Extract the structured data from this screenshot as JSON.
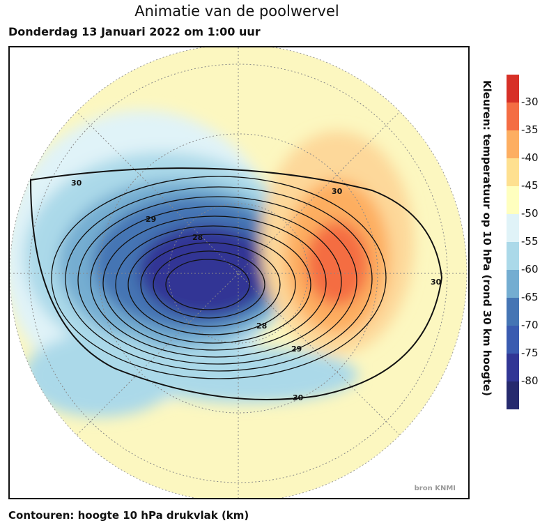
{
  "title": "Animatie van de poolwervel",
  "subtitle": "Donderdag 13 Januari 2022 om 1:00 uur",
  "footer": "Contouren: hoogte 10 hPa drukvlak (km)",
  "source": "bron KNMI",
  "colorbar": {
    "title": "Kleuren: temperatuur op 10 hPa (rond 30 km hoogte)",
    "colors": [
      "#d73027",
      "#f46d43",
      "#fdae61",
      "#fee090",
      "#ffffbf",
      "#e0f3f8",
      "#abd9e9",
      "#74add1",
      "#4575b4",
      "#3a5bb0",
      "#313695",
      "#262a6e"
    ],
    "ticks": [
      "-30",
      "-35",
      "-40",
      "-45",
      "-50",
      "-55",
      "-60",
      "-65",
      "-70",
      "-75",
      "-80"
    ]
  },
  "contour_labels": [
    "30",
    "30",
    "30",
    "30",
    "29",
    "28",
    "28",
    "29"
  ]
}
